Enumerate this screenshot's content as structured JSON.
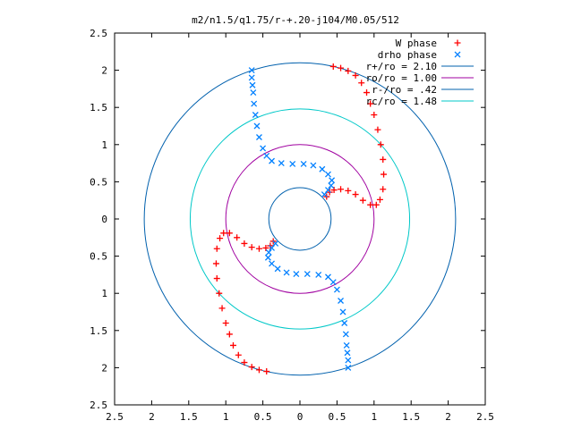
{
  "chart_data": {
    "type": "scatter",
    "title": "m2/n1.5/q1.75/r-+.20-j104/M0.05/512",
    "xlabel": "",
    "ylabel": "",
    "xlim": [
      -2.5,
      2.5
    ],
    "ylim": [
      -2.5,
      2.5
    ],
    "grid": false,
    "legend_position": "top-right",
    "x_tick_labels": [
      "2.5",
      "2",
      "1.5",
      "1",
      "0.5",
      "0",
      "0.5",
      "1",
      "1.5",
      "2",
      "2.5"
    ],
    "y_tick_labels": [
      "2.5",
      "2",
      "1.5",
      "1",
      "0.5",
      "0",
      "0.5",
      "1",
      "1.5",
      "2",
      "2.5"
    ],
    "ticks": [
      -2.5,
      -2,
      -1.5,
      -1,
      -0.5,
      0,
      0.5,
      1,
      1.5,
      2,
      2.5
    ],
    "circles": [
      {
        "name": "r+/ro = 2.10",
        "radius": 2.1,
        "color": "#0060ad"
      },
      {
        "name": "ro/ro = 1.00",
        "radius": 1.0,
        "color": "#a000a0"
      },
      {
        "name": "r-/ro = .42",
        "radius": 0.42,
        "color": "#0060ad"
      },
      {
        "name": "rc/ro = 1.48",
        "radius": 1.48,
        "color": "#00c8c8"
      }
    ],
    "series": [
      {
        "name": "W phase",
        "marker": "+",
        "color": "#ff0000",
        "points": [
          [
            0.36,
            0.3
          ],
          [
            0.4,
            0.36
          ],
          [
            0.46,
            0.39
          ],
          [
            0.55,
            0.4
          ],
          [
            0.65,
            0.38
          ],
          [
            0.75,
            0.33
          ],
          [
            0.85,
            0.25
          ],
          [
            0.95,
            0.19
          ],
          [
            1.03,
            0.19
          ],
          [
            1.08,
            0.26
          ],
          [
            1.12,
            0.4
          ],
          [
            1.13,
            0.6
          ],
          [
            1.12,
            0.8
          ],
          [
            1.09,
            1.0
          ],
          [
            1.05,
            1.2
          ],
          [
            1.0,
            1.4
          ],
          [
            0.95,
            1.55
          ],
          [
            0.9,
            1.7
          ],
          [
            0.83,
            1.83
          ],
          [
            0.75,
            1.93
          ],
          [
            0.65,
            1.99
          ],
          [
            0.55,
            2.03
          ],
          [
            0.45,
            2.05
          ],
          [
            -0.36,
            -0.3
          ],
          [
            -0.4,
            -0.36
          ],
          [
            -0.46,
            -0.39
          ],
          [
            -0.55,
            -0.4
          ],
          [
            -0.65,
            -0.38
          ],
          [
            -0.75,
            -0.33
          ],
          [
            -0.85,
            -0.25
          ],
          [
            -0.95,
            -0.19
          ],
          [
            -1.03,
            -0.19
          ],
          [
            -1.08,
            -0.26
          ],
          [
            -1.12,
            -0.4
          ],
          [
            -1.13,
            -0.6
          ],
          [
            -1.12,
            -0.8
          ],
          [
            -1.09,
            -1.0
          ],
          [
            -1.05,
            -1.2
          ],
          [
            -1.0,
            -1.4
          ],
          [
            -0.95,
            -1.55
          ],
          [
            -0.9,
            -1.7
          ],
          [
            -0.83,
            -1.83
          ],
          [
            -0.75,
            -1.93
          ],
          [
            -0.65,
            -1.99
          ],
          [
            -0.55,
            -2.03
          ],
          [
            -0.45,
            -2.05
          ]
        ]
      },
      {
        "name": "drho phase",
        "marker": "x",
        "color": "#0080ff",
        "points": [
          [
            -0.65,
            2.0
          ],
          [
            -0.65,
            1.9
          ],
          [
            -0.64,
            1.8
          ],
          [
            -0.63,
            1.7
          ],
          [
            -0.62,
            1.55
          ],
          [
            -0.6,
            1.4
          ],
          [
            -0.58,
            1.25
          ],
          [
            -0.55,
            1.1
          ],
          [
            -0.5,
            0.95
          ],
          [
            -0.45,
            0.85
          ],
          [
            -0.38,
            0.78
          ],
          [
            -0.25,
            0.75
          ],
          [
            -0.1,
            0.74
          ],
          [
            0.05,
            0.74
          ],
          [
            0.18,
            0.72
          ],
          [
            0.3,
            0.67
          ],
          [
            0.38,
            0.6
          ],
          [
            0.43,
            0.52
          ],
          [
            0.42,
            0.45
          ],
          [
            0.38,
            0.39
          ],
          [
            0.33,
            0.33
          ],
          [
            0.65,
            -2.0
          ],
          [
            0.65,
            -1.9
          ],
          [
            0.64,
            -1.8
          ],
          [
            0.63,
            -1.7
          ],
          [
            0.62,
            -1.55
          ],
          [
            0.6,
            -1.4
          ],
          [
            0.58,
            -1.25
          ],
          [
            0.55,
            -1.1
          ],
          [
            0.5,
            -0.95
          ],
          [
            0.45,
            -0.85
          ],
          [
            0.38,
            -0.78
          ],
          [
            0.25,
            -0.75
          ],
          [
            0.1,
            -0.74
          ],
          [
            -0.05,
            -0.74
          ],
          [
            -0.18,
            -0.72
          ],
          [
            -0.3,
            -0.67
          ],
          [
            -0.38,
            -0.6
          ],
          [
            -0.43,
            -0.52
          ],
          [
            -0.42,
            -0.45
          ],
          [
            -0.38,
            -0.39
          ],
          [
            -0.33,
            -0.33
          ]
        ]
      }
    ]
  }
}
